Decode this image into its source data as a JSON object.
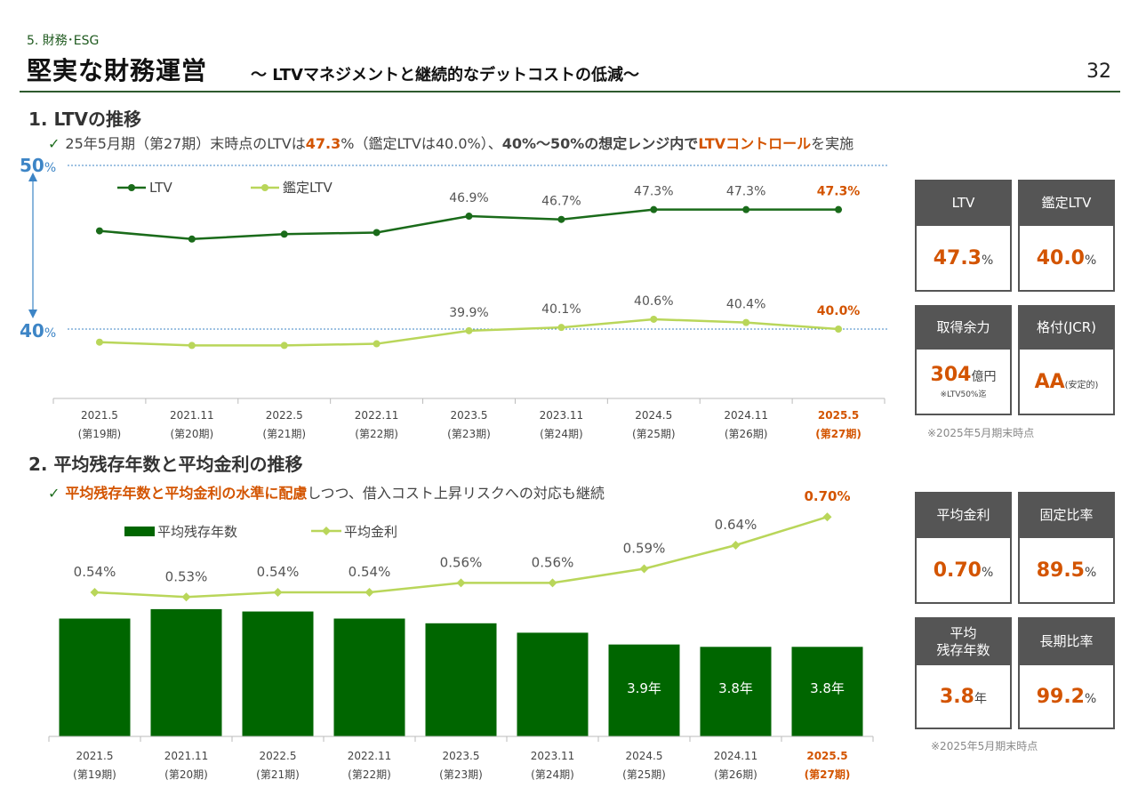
{
  "header": {
    "section_tag": "5. 財務･ESG",
    "title": "堅実な財務運営",
    "subtitle": "～ LTVマネジメントと継続的なデットコストの低減～",
    "page_number": "32"
  },
  "section1": {
    "heading": "1. LTVの推移",
    "bullet_parts": [
      "25年5月期（第27期）末時点のLTVは",
      "47.3",
      "%（鑑定LTVは40.0%）、",
      "40%～50%の想定レンジ内で",
      "LTVコントロール",
      "を実施"
    ],
    "range_top": "50",
    "range_bottom": "40",
    "range_unit": "%"
  },
  "section2": {
    "heading": "2. 平均残存年数と平均金利の推移",
    "bullet_parts": [
      "平均残存年数と平均金利の水準に配慮",
      "しつつ、借入コスト上昇リスクへの対応も継続"
    ]
  },
  "chart_data": [
    {
      "type": "line",
      "categories": [
        "2021.5",
        "2021.11",
        "2022.5",
        "2022.11",
        "2023.5",
        "2023.11",
        "2024.5",
        "2024.11",
        "2025.5"
      ],
      "subcategories": [
        "(第19期)",
        "(第20期)",
        "(第21期)",
        "(第22期)",
        "(第23期)",
        "(第24期)",
        "(第25期)",
        "(第26期)",
        "(第27期)"
      ],
      "series": [
        {
          "name": "LTV",
          "values": [
            46.0,
            45.5,
            45.8,
            45.9,
            46.9,
            46.7,
            47.3,
            47.3,
            47.3
          ],
          "labels": [
            "",
            "",
            "",
            "",
            "46.9%",
            "46.7%",
            "47.3%",
            "47.3%",
            "47.3%"
          ],
          "color": "#1a6b1a"
        },
        {
          "name": "鑑定LTV",
          "values": [
            39.2,
            39.0,
            39.0,
            39.1,
            39.9,
            40.1,
            40.6,
            40.4,
            40.0
          ],
          "labels": [
            "",
            "",
            "",
            "",
            "39.9%",
            "40.1%",
            "40.6%",
            "40.4%",
            "40.0%"
          ],
          "color": "#b9d65a"
        }
      ],
      "ylim": [
        37,
        51
      ],
      "reference_lines": [
        50,
        40
      ],
      "highlight_color": "#d35400"
    },
    {
      "type": "bar",
      "categories": [
        "2021.5",
        "2021.11",
        "2022.5",
        "2022.11",
        "2023.5",
        "2023.11",
        "2024.5",
        "2024.11",
        "2025.5"
      ],
      "subcategories": [
        "(第19期)",
        "(第20期)",
        "(第21期)",
        "(第22期)",
        "(第23期)",
        "(第24期)",
        "(第25期)",
        "(第26期)",
        "(第27期)"
      ],
      "series": [
        {
          "name": "平均残存年数",
          "values": [
            5.0,
            5.4,
            5.3,
            5.0,
            4.8,
            4.4,
            3.9,
            3.8,
            3.8
          ],
          "labels": [
            "",
            "",
            "",
            "",
            "",
            "",
            "3.9年",
            "3.8年",
            "3.8年"
          ],
          "color": "#006600"
        },
        {
          "name": "平均金利",
          "values": [
            0.54,
            0.53,
            0.54,
            0.54,
            0.56,
            0.56,
            0.59,
            0.64,
            0.7
          ],
          "labels": [
            "0.54%",
            "0.53%",
            "0.54%",
            "0.54%",
            "0.56%",
            "0.56%",
            "0.59%",
            "0.64%",
            "0.70%"
          ],
          "color": "#b9d65a"
        }
      ],
      "highlight_color": "#d35400"
    }
  ],
  "kpis_top": [
    {
      "label": "LTV",
      "value": "47.3",
      "unit": "%",
      "note": ""
    },
    {
      "label": "鑑定LTV",
      "value": "40.0",
      "unit": "%",
      "note": ""
    },
    {
      "label": "取得余力",
      "value": "304",
      "unit": "億円",
      "note": "※LTV50%迄"
    },
    {
      "label": "格付(JCR)",
      "value": "AA",
      "unit": "(安定的)",
      "note": ""
    }
  ],
  "kpis_bottom": [
    {
      "label": "平均金利",
      "value": "0.70",
      "unit": "%",
      "note": ""
    },
    {
      "label": "固定比率",
      "value": "89.5",
      "unit": "%",
      "note": ""
    },
    {
      "label": "平均\n残存年数",
      "value": "3.8",
      "unit": "年",
      "note": ""
    },
    {
      "label": "長期比率",
      "value": "99.2",
      "unit": "%",
      "note": ""
    }
  ],
  "notes": {
    "top": "※2025年5月期末時点",
    "bottom": "※2025年5月期末時点"
  }
}
